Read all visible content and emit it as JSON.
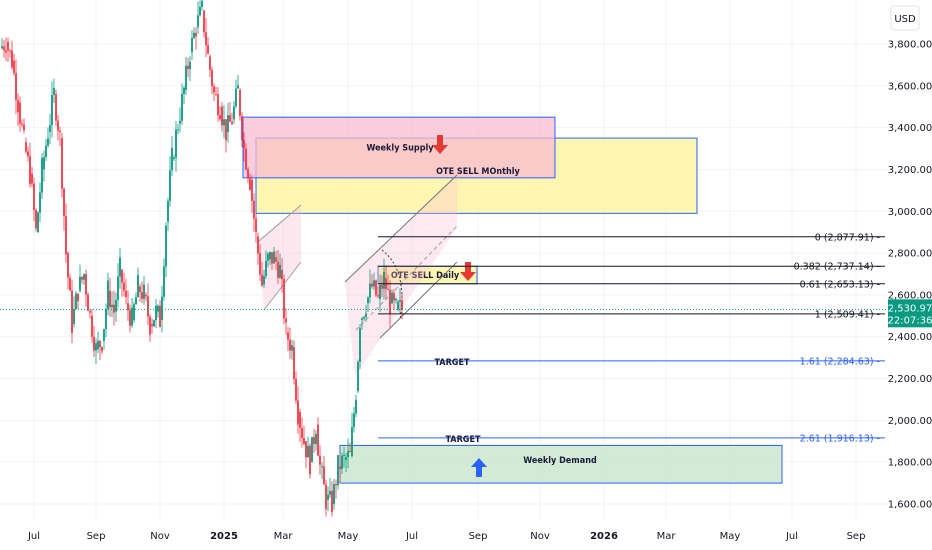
{
  "chart_data": {
    "type": "candlestick",
    "currency": "USD",
    "price_ticks": [
      1600,
      1800,
      2000,
      2200,
      2400,
      2600,
      2800,
      3000,
      3200,
      3400,
      3600,
      3800
    ],
    "price_tick_labels": [
      "1,600.00",
      "1,800.00",
      "2,000.00",
      "2,200.00",
      "2,400.00",
      "2,600.00",
      "2,800.00",
      "3,000.00",
      "3,200.00",
      "3,400.00",
      "3,600.00",
      "3,800.00"
    ],
    "ylim": [
      1540,
      4040
    ],
    "time_axis": [
      {
        "label": "Jul",
        "bold": false
      },
      {
        "label": "Sep",
        "bold": false
      },
      {
        "label": "Nov",
        "bold": false
      },
      {
        "label": "2025",
        "bold": true
      },
      {
        "label": "Mar",
        "bold": false
      },
      {
        "label": "May",
        "bold": false
      },
      {
        "label": "Jul",
        "bold": false
      },
      {
        "label": "Sep",
        "bold": false
      },
      {
        "label": "Nov",
        "bold": false
      },
      {
        "label": "2026",
        "bold": true
      },
      {
        "label": "Mar",
        "bold": false
      },
      {
        "label": "May",
        "bold": false
      },
      {
        "label": "Jul",
        "bold": false
      },
      {
        "label": "Sep",
        "bold": false
      }
    ],
    "current_price": {
      "value": 2530.97,
      "label": "2,530.97",
      "countdown": "22:07:36",
      "color": "#089981"
    },
    "zones": [
      {
        "label": "Weekly Supply",
        "top": 3450,
        "bottom": 3160,
        "fill": "#f8bbd0",
        "stroke": "#2962ff",
        "arrow": "down"
      },
      {
        "label": "OTE SELL MOnthly",
        "top": 3350,
        "bottom": 2990,
        "fill": "#fff59d",
        "stroke": "#2962ff",
        "arrow": "none"
      },
      {
        "label": "OTE SELL Daily",
        "top": 2737.14,
        "bottom": 2653.13,
        "fill": "#fff59d",
        "stroke": "#2962ff",
        "arrow": "down"
      },
      {
        "label": "Weekly Demand",
        "top": 1880,
        "bottom": 1700,
        "fill": "#c8e6c9",
        "stroke": "#2962ff",
        "arrow": "up"
      }
    ],
    "fib_levels": [
      {
        "label": "0 (2,877.91)",
        "value": 2877.91,
        "color": "#131722"
      },
      {
        "label": "0.382 (2,737.14)",
        "value": 2737.14,
        "color": "#131722"
      },
      {
        "label": "0.61 (2,653.13)",
        "value": 2653.13,
        "color": "#131722"
      },
      {
        "label": "1 (2,509.41)",
        "value": 2509.41,
        "color": "#131722"
      },
      {
        "label": "1.61 (2,284.63)",
        "value": 2284.63,
        "color": "#2962ff"
      },
      {
        "label": "2.61 (1,916.13)",
        "value": 1916.13,
        "color": "#2962ff"
      }
    ],
    "targets": [
      {
        "label": "TARGET",
        "value": 2284.63
      },
      {
        "label": "TARGET",
        "value": 1916.13
      }
    ],
    "series": [
      {
        "name": "",
        "path": [
          [
            0,
            3780
          ],
          [
            6,
            3810
          ],
          [
            12,
            3720
          ],
          [
            18,
            3520
          ],
          [
            24,
            3330
          ],
          [
            30,
            3180
          ],
          [
            36,
            2900
          ],
          [
            42,
            3200
          ],
          [
            48,
            3380
          ],
          [
            54,
            3560
          ],
          [
            60,
            3350
          ],
          [
            66,
            2800
          ],
          [
            72,
            2460
          ],
          [
            78,
            2620
          ],
          [
            84,
            2700
          ],
          [
            90,
            2500
          ],
          [
            96,
            2340
          ],
          [
            102,
            2380
          ],
          [
            108,
            2620
          ],
          [
            114,
            2520
          ],
          [
            120,
            2720
          ],
          [
            126,
            2560
          ],
          [
            132,
            2480
          ],
          [
            138,
            2640
          ],
          [
            144,
            2600
          ],
          [
            150,
            2460
          ],
          [
            156,
            2520
          ],
          [
            160,
            2480
          ],
          [
            166,
            2950
          ],
          [
            172,
            3250
          ],
          [
            178,
            3420
          ],
          [
            184,
            3580
          ],
          [
            190,
            3760
          ],
          [
            196,
            3880
          ],
          [
            202,
            3960
          ],
          [
            208,
            3740
          ],
          [
            214,
            3560
          ],
          [
            220,
            3500
          ],
          [
            226,
            3380
          ],
          [
            232,
            3440
          ],
          [
            238,
            3580
          ],
          [
            244,
            3300
          ],
          [
            250,
            3150
          ],
          [
            256,
            2880
          ],
          [
            262,
            2650
          ],
          [
            268,
            2770
          ],
          [
            274,
            2780
          ],
          [
            280,
            2720
          ],
          [
            286,
            2420
          ],
          [
            292,
            2350
          ],
          [
            298,
            2040
          ],
          [
            304,
            1900
          ],
          [
            310,
            1800
          ],
          [
            316,
            1980
          ],
          [
            320,
            1780
          ],
          [
            326,
            1620
          ],
          [
            332,
            1600
          ],
          [
            338,
            1780
          ],
          [
            344,
            1810
          ],
          [
            350,
            1830
          ],
          [
            356,
            2140
          ],
          [
            360,
            2480
          ],
          [
            366,
            2560
          ],
          [
            372,
            2640
          ],
          [
            378,
            2580
          ],
          [
            384,
            2680
          ],
          [
            390,
            2560
          ],
          [
            396,
            2530
          ],
          [
            402,
            2535
          ]
        ]
      }
    ]
  }
}
